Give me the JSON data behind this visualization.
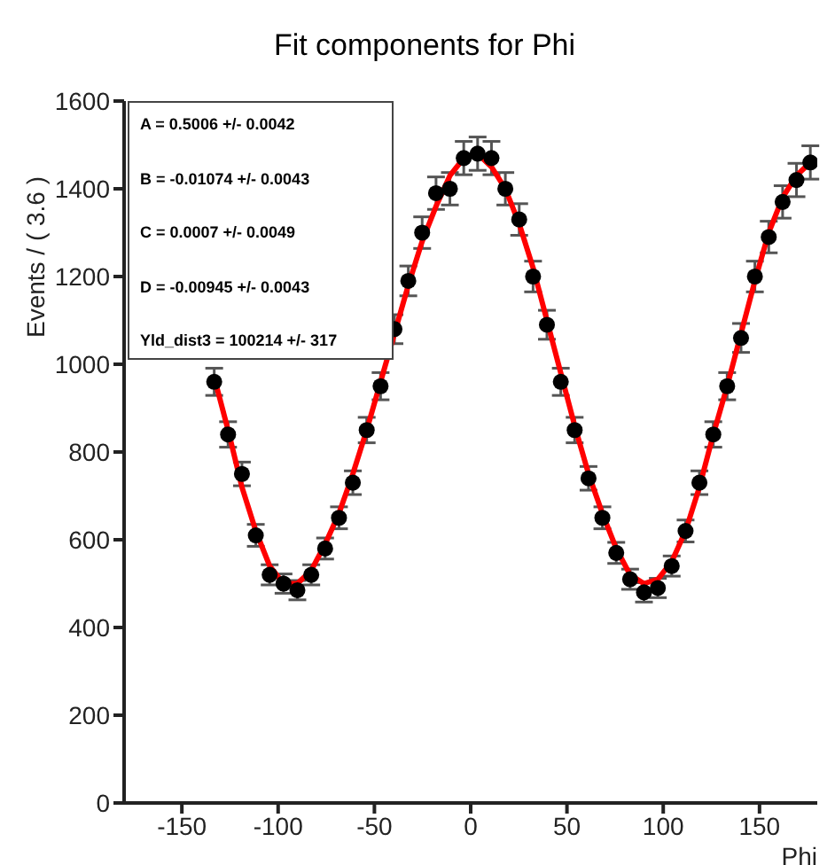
{
  "chart_data": {
    "type": "scatter",
    "title": "Fit components for Phi",
    "xlabel": "Phi",
    "ylabel": "Events / ( 3.6 )",
    "annotations": [
      "A = 0.5006 +/- 0.0042",
      "B = -0.01074 +/- 0.0043",
      "C = 0.0007 +/- 0.0049",
      "D = -0.00945 +/- 0.0043",
      "Yld_dist3 = 100214 +/- 317"
    ],
    "x": [
      -133.2,
      -126,
      -118.8,
      -111.6,
      -104.4,
      -97.2,
      -90,
      -82.8,
      -75.6,
      -68.4,
      -61.2,
      -54,
      -46.8,
      -39.6,
      -32.4,
      -25.2,
      -18,
      -10.8,
      -3.6,
      3.6,
      10.8,
      18,
      25.2,
      32.4,
      39.6,
      46.8,
      54,
      61.2,
      68.4,
      75.6,
      82.8,
      90,
      97.2,
      104.4,
      111.6,
      118.8,
      126,
      133.2,
      140.4,
      147.6,
      154.8,
      162,
      169.2,
      176.4
    ],
    "series": [
      {
        "color": "#000000",
        "marker": "circle",
        "values": [
          960,
          840,
          750,
          610,
          520,
          500,
          485,
          520,
          580,
          650,
          730,
          850,
          950,
          1080,
          1190,
          1300,
          1390,
          1400,
          1470,
          1480,
          1470,
          1400,
          1330,
          1200,
          1090,
          960,
          850,
          740,
          650,
          570,
          510,
          480,
          490,
          540,
          620,
          730,
          840,
          950,
          1060,
          1200,
          1290,
          1370,
          1420,
          1460
        ],
        "errors": [
          31,
          29,
          27,
          25,
          23,
          22,
          22,
          23,
          24,
          25,
          27,
          29,
          31,
          33,
          34,
          36,
          37,
          37,
          38,
          38,
          38,
          37,
          36,
          35,
          33,
          31,
          29,
          27,
          25,
          24,
          23,
          22,
          22,
          23,
          25,
          27,
          29,
          31,
          33,
          35,
          36,
          37,
          38,
          38
        ]
      },
      {
        "type": "line",
        "color": "#ff0000",
        "marker": "none",
        "line_style": "solid",
        "values": [
          970,
          850,
          720,
          620,
          540,
          500,
          500,
          530,
          590,
          660,
          750,
          850,
          960,
          1070,
          1180,
          1280,
          1360,
          1430,
          1470,
          1480,
          1450,
          1400,
          1320,
          1220,
          1100,
          980,
          860,
          750,
          660,
          580,
          520,
          500,
          510,
          550,
          620,
          720,
          840,
          950,
          1070,
          1190,
          1300,
          1380,
          1430,
          1460
        ]
      }
    ],
    "xlim": [
      -180,
      180
    ],
    "xticks": [
      -150,
      -100,
      -50,
      0,
      50,
      100,
      150
    ],
    "ylim": [
      0,
      1600
    ],
    "yticks": [
      0,
      200,
      400,
      600,
      800,
      1000,
      1200,
      1400,
      1600
    ],
    "grid": false,
    "legend": false
  }
}
